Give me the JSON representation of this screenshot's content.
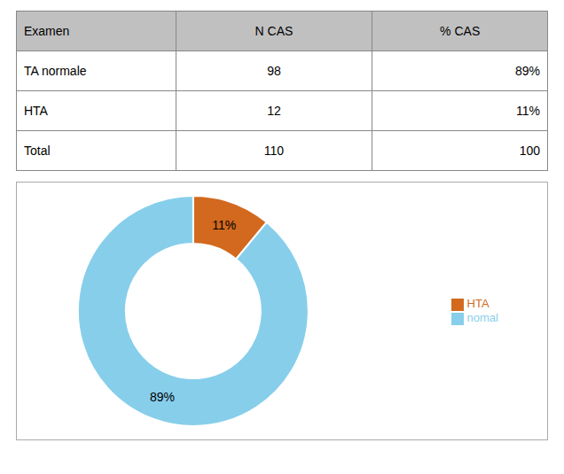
{
  "chart_data": {
    "type": "pie",
    "categories": [
      "HTA",
      "nomal"
    ],
    "values": [
      11,
      89
    ],
    "value_labels": [
      "11%",
      "89%"
    ],
    "data_labels": true,
    "colors": [
      "#d2691e",
      "#87ceeb"
    ],
    "legend": "right",
    "table": {
      "headers": [
        "Examen",
        "N CAS",
        "% CAS"
      ],
      "rows": [
        [
          "TA normale",
          "98",
          "89%"
        ],
        [
          "HTA",
          "12",
          "11%"
        ],
        [
          "Total",
          "110",
          "100"
        ]
      ]
    }
  }
}
